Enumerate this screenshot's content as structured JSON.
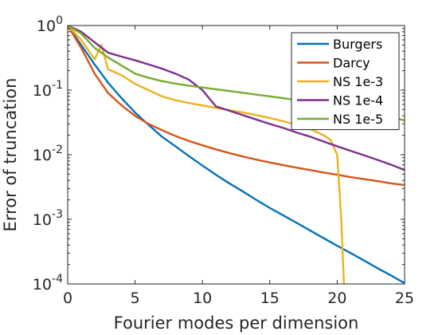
{
  "chart_data": {
    "type": "line",
    "xlabel": "Fourier modes per dimension",
    "ylabel": "Error of truncation",
    "xlim": [
      0,
      25
    ],
    "ylim": [
      0.0001,
      1
    ],
    "yscale": "log",
    "grid": false,
    "legend_position": "top-right",
    "x_ticks": [
      0,
      5,
      10,
      15,
      20,
      25
    ],
    "y_ticks": [
      {
        "value": 0.0001,
        "base": "10",
        "exp": "-4"
      },
      {
        "value": 0.001,
        "base": "10",
        "exp": "-3"
      },
      {
        "value": 0.01,
        "base": "10",
        "exp": "-2"
      },
      {
        "value": 0.1,
        "base": "10",
        "exp": "-1"
      },
      {
        "value": 1,
        "base": "10",
        "exp": "0"
      }
    ],
    "series": [
      {
        "name": "Burgers",
        "color": "#0072BD",
        "points": [
          [
            0,
            1
          ],
          [
            1,
            0.5
          ],
          [
            2,
            0.25
          ],
          [
            3,
            0.13
          ],
          [
            4,
            0.075
          ],
          [
            5,
            0.045
          ],
          [
            6,
            0.029
          ],
          [
            7,
            0.019
          ],
          [
            8,
            0.0135
          ],
          [
            9,
            0.0095
          ],
          [
            10,
            0.0068
          ],
          [
            11,
            0.0049
          ],
          [
            12,
            0.0036
          ],
          [
            13,
            0.0027
          ],
          [
            14,
            0.002
          ],
          [
            15,
            0.0015
          ],
          [
            16,
            0.00115
          ],
          [
            17,
            0.00088
          ],
          [
            18,
            0.00067
          ],
          [
            19,
            0.00051
          ],
          [
            20,
            0.00039
          ],
          [
            21,
            0.0003
          ],
          [
            22,
            0.00023
          ],
          [
            23,
            0.000175
          ],
          [
            24,
            0.000135
          ],
          [
            25,
            0.000103
          ]
        ]
      },
      {
        "name": "Darcy",
        "color": "#D95319",
        "points": [
          [
            0,
            1
          ],
          [
            1,
            0.45
          ],
          [
            2,
            0.18
          ],
          [
            3,
            0.09
          ],
          [
            4,
            0.058
          ],
          [
            5,
            0.04
          ],
          [
            6,
            0.03
          ],
          [
            7,
            0.024
          ],
          [
            8,
            0.0195
          ],
          [
            9,
            0.0163
          ],
          [
            10,
            0.014
          ],
          [
            11,
            0.0121
          ],
          [
            12,
            0.0106
          ],
          [
            13,
            0.0094
          ],
          [
            14,
            0.0084
          ],
          [
            15,
            0.0076
          ],
          [
            16,
            0.0069
          ],
          [
            17,
            0.0063
          ],
          [
            18,
            0.0058
          ],
          [
            19,
            0.0053
          ],
          [
            20,
            0.0049
          ],
          [
            21,
            0.0045
          ],
          [
            22,
            0.0042
          ],
          [
            23,
            0.0039
          ],
          [
            24,
            0.0036
          ],
          [
            25,
            0.0034
          ]
        ]
      },
      {
        "name": "NS 1e-3",
        "color": "#EDB120",
        "points": [
          [
            0,
            1
          ],
          [
            1,
            0.6
          ],
          [
            2,
            0.3
          ],
          [
            2.5,
            0.5
          ],
          [
            3,
            0.21
          ],
          [
            4,
            0.17
          ],
          [
            5,
            0.125
          ],
          [
            6,
            0.1
          ],
          [
            7,
            0.08
          ],
          [
            8,
            0.07
          ],
          [
            9,
            0.063
          ],
          [
            10,
            0.058
          ],
          [
            11,
            0.053
          ],
          [
            12,
            0.049
          ],
          [
            13,
            0.045
          ],
          [
            14,
            0.041
          ],
          [
            15,
            0.037
          ],
          [
            16,
            0.033
          ],
          [
            17,
            0.029
          ],
          [
            18,
            0.025
          ],
          [
            19,
            0.02
          ],
          [
            19.5,
            0.017
          ],
          [
            20,
            0.01
          ],
          [
            20.3,
            0.001
          ],
          [
            20.5,
            0.0001
          ]
        ]
      },
      {
        "name": "NS 1e-4",
        "color": "#7E2F8E",
        "points": [
          [
            0,
            1
          ],
          [
            1,
            0.8
          ],
          [
            2,
            0.55
          ],
          [
            3,
            0.38
          ],
          [
            4,
            0.33
          ],
          [
            5,
            0.29
          ],
          [
            6,
            0.25
          ],
          [
            7,
            0.215
          ],
          [
            8,
            0.18
          ],
          [
            9,
            0.145
          ],
          [
            10,
            0.1
          ],
          [
            11,
            0.056
          ],
          [
            12,
            0.048
          ],
          [
            13,
            0.041
          ],
          [
            14,
            0.035
          ],
          [
            15,
            0.03
          ],
          [
            16,
            0.026
          ],
          [
            17,
            0.022
          ],
          [
            18,
            0.019
          ],
          [
            19,
            0.016
          ],
          [
            20,
            0.0135
          ],
          [
            21,
            0.0115
          ],
          [
            22,
            0.0098
          ],
          [
            23,
            0.0083
          ],
          [
            24,
            0.007
          ],
          [
            25,
            0.0058
          ]
        ]
      },
      {
        "name": "NS 1e-5",
        "color": "#77AC30",
        "points": [
          [
            0,
            1
          ],
          [
            1,
            0.75
          ],
          [
            2,
            0.45
          ],
          [
            3,
            0.32
          ],
          [
            4,
            0.24
          ],
          [
            5,
            0.18
          ],
          [
            6,
            0.155
          ],
          [
            7,
            0.138
          ],
          [
            8,
            0.126
          ],
          [
            9,
            0.117
          ],
          [
            10,
            0.11
          ],
          [
            11,
            0.103
          ],
          [
            12,
            0.097
          ],
          [
            13,
            0.091
          ],
          [
            14,
            0.085
          ],
          [
            15,
            0.08
          ],
          [
            16,
            0.075
          ],
          [
            17,
            0.07
          ],
          [
            18,
            0.065
          ],
          [
            19,
            0.06
          ],
          [
            20,
            0.055
          ],
          [
            21,
            0.05
          ],
          [
            22,
            0.046
          ],
          [
            23,
            0.042
          ],
          [
            24,
            0.038
          ],
          [
            25,
            0.034
          ]
        ]
      }
    ]
  }
}
